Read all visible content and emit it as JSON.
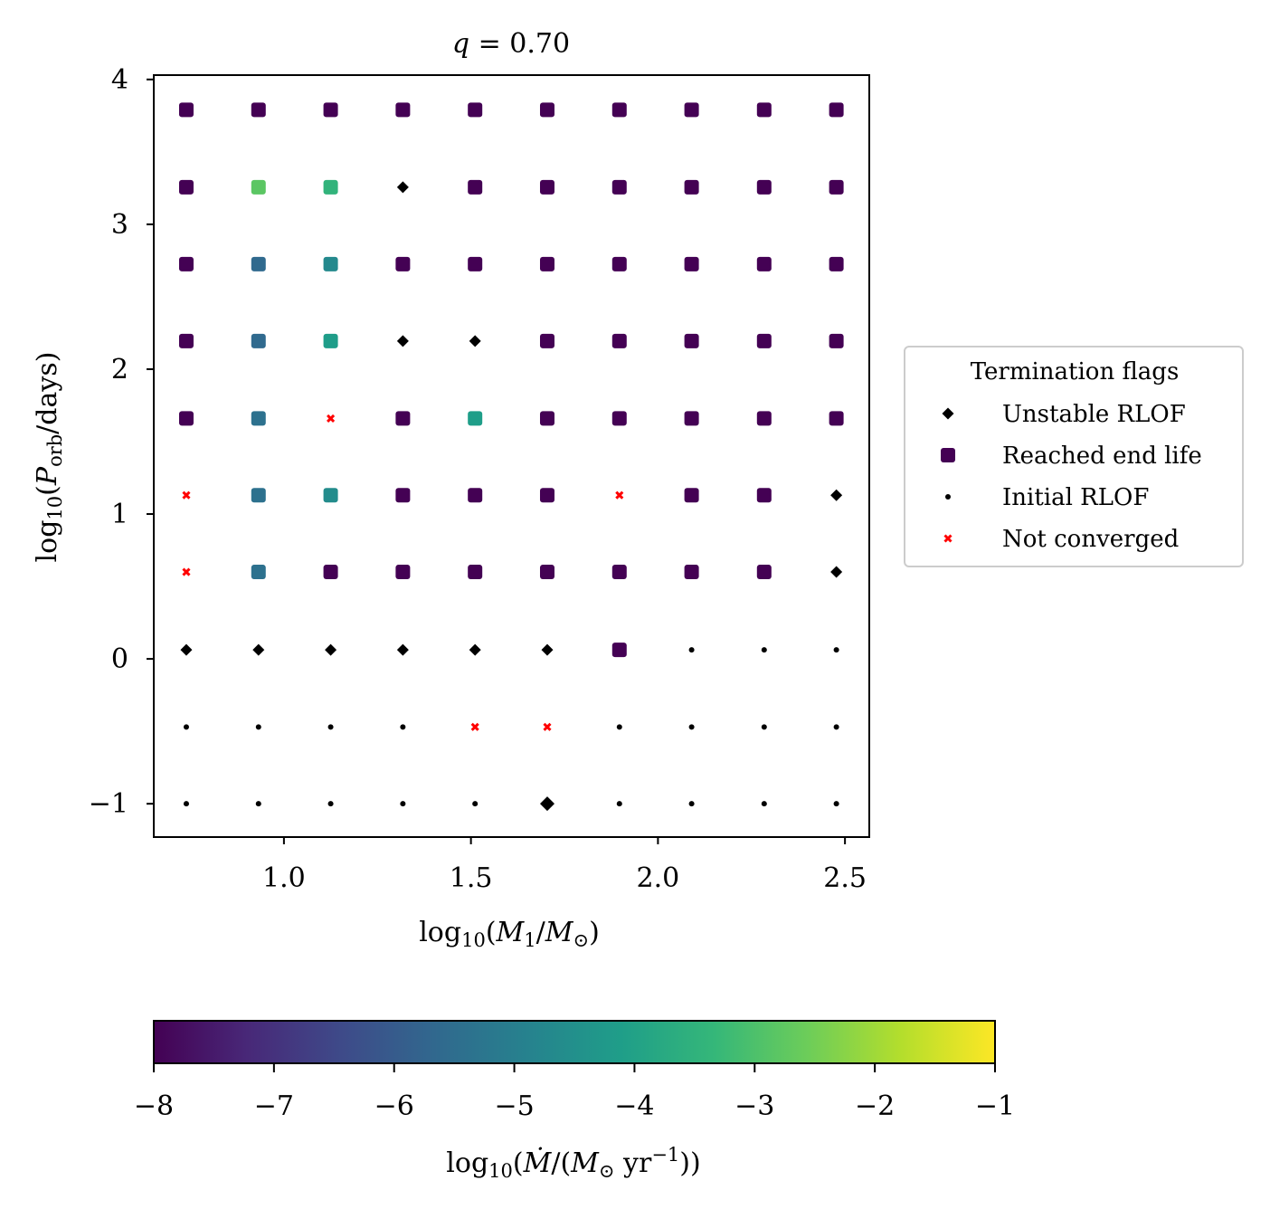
{
  "chart_data": {
    "type": "scatter",
    "title": [
      {
        "t": "q",
        "i": true
      },
      {
        "t": " = 0.70"
      }
    ],
    "xlabel": [
      {
        "t": "log"
      },
      {
        "t": "10",
        "sub": true
      },
      {
        "t": "("
      },
      {
        "t": "M",
        "i": true
      },
      {
        "t": "1",
        "sub": true
      },
      {
        "t": "/"
      },
      {
        "t": "M",
        "i": true
      },
      {
        "t": "⊙",
        "sub": true
      },
      {
        "t": ")"
      }
    ],
    "ylabel": [
      {
        "t": "log"
      },
      {
        "t": "10",
        "sub": true
      },
      {
        "t": "("
      },
      {
        "t": "P",
        "i": true
      },
      {
        "t": "orb",
        "sub": true
      },
      {
        "t": "/days)"
      }
    ],
    "xlim": [
      0.652,
      2.565
    ],
    "ylim": [
      -1.23,
      4.03
    ],
    "xticks": [
      1.0,
      1.5,
      2.0,
      2.5
    ],
    "xtick_labels": [
      "1.0",
      "1.5",
      "2.0",
      "2.5"
    ],
    "yticks": [
      -1,
      0,
      1,
      2,
      3,
      4
    ],
    "ytick_labels": [
      "−1",
      "0",
      "1",
      "2",
      "3",
      "4"
    ],
    "grid": false,
    "x": [
      0.739,
      0.932,
      1.125,
      1.318,
      1.511,
      1.704,
      1.897,
      2.09,
      2.284,
      2.477
    ],
    "y": [
      3.79,
      3.256,
      2.725,
      2.194,
      1.66,
      1.13,
      0.6,
      0.0625,
      -0.47,
      -1.0
    ],
    "flags": [
      [
        "E",
        "E",
        "E",
        "E",
        "E",
        "E",
        "E",
        "E",
        "E",
        "E"
      ],
      [
        "E",
        "E",
        "E",
        "U",
        "E",
        "E",
        "E",
        "E",
        "E",
        "E"
      ],
      [
        "E",
        "E",
        "E",
        "E",
        "E",
        "E",
        "E",
        "E",
        "E",
        "E"
      ],
      [
        "E",
        "E",
        "E",
        "U",
        "U",
        "E",
        "E",
        "E",
        "E",
        "E"
      ],
      [
        "E",
        "E",
        "N",
        "E",
        "E",
        "E",
        "E",
        "E",
        "E",
        "E"
      ],
      [
        "N",
        "E",
        "E",
        "E",
        "E",
        "E",
        "N",
        "E",
        "E",
        "U"
      ],
      [
        "N",
        "E",
        "E",
        "E",
        "E",
        "E",
        "E",
        "E",
        "E",
        "U"
      ],
      [
        "U",
        "U",
        "U",
        "U",
        "U",
        "U",
        "E",
        "I",
        "I",
        "I"
      ],
      [
        "I",
        "I",
        "I",
        "I",
        "N",
        "N",
        "I",
        "I",
        "I",
        "I"
      ],
      [
        "I",
        "I",
        "I",
        "I",
        "I",
        "U",
        "I",
        "I",
        "I",
        "I"
      ]
    ],
    "log_mdot": [
      [
        -8,
        -8,
        -8,
        -8,
        -8,
        -8,
        -8,
        -8,
        -8,
        -8
      ],
      [
        -8,
        -2.8,
        -3.45,
        null,
        -8,
        -8,
        -8,
        -8,
        -8,
        -8
      ],
      [
        -8,
        -5.6,
        -4.7,
        -8,
        -8,
        -8,
        -8,
        -8,
        -8,
        -8
      ],
      [
        -8,
        -5.6,
        -4.15,
        null,
        null,
        -8,
        -8,
        -8,
        -8,
        -8
      ],
      [
        -8,
        -5.4,
        null,
        -8,
        -4.1,
        -8,
        -8,
        -8,
        -8,
        -8
      ],
      [
        null,
        -5.4,
        -4.6,
        -8,
        -8,
        -8,
        null,
        -8,
        -8,
        null
      ],
      [
        null,
        -5.4,
        -8,
        -8,
        -8,
        -8,
        -8,
        -8,
        -8,
        null
      ],
      [
        null,
        null,
        null,
        null,
        null,
        null,
        -8,
        null,
        null,
        null
      ],
      [
        null,
        null,
        null,
        null,
        null,
        null,
        null,
        null,
        null,
        null
      ],
      [
        null,
        null,
        null,
        null,
        null,
        null,
        null,
        null,
        null,
        null
      ]
    ],
    "legend": {
      "title": "Termination flags",
      "placement": "right",
      "entries": [
        {
          "code": "U",
          "label": "Unstable RLOF",
          "marker": "diamond",
          "color": "#000000"
        },
        {
          "code": "E",
          "label": "Reached end life",
          "marker": "square",
          "color": "#440154"
        },
        {
          "code": "I",
          "label": "Initial RLOF",
          "marker": "dot",
          "color": "#000000"
        },
        {
          "code": "N",
          "label": "Not converged",
          "marker": "x",
          "color": "#ff0000"
        }
      ]
    },
    "colorbar": {
      "colormap": "viridis",
      "range": [
        -8,
        -1
      ],
      "ticks": [
        -8,
        -7,
        -6,
        -5,
        -4,
        -3,
        -2,
        -1
      ],
      "tick_labels": [
        "−8",
        "−7",
        "−6",
        "−5",
        "−4",
        "−3",
        "−2",
        "−1"
      ],
      "label": [
        {
          "t": "log"
        },
        {
          "t": "10",
          "sub": true
        },
        {
          "t": "("
        },
        {
          "t": "Ṁ",
          "i": true
        },
        {
          "t": "/("
        },
        {
          "t": "M",
          "i": true
        },
        {
          "t": "⊙",
          "sub": true
        },
        {
          "t": " yr"
        },
        {
          "t": "−1",
          "sup": true
        },
        {
          "t": "))"
        }
      ],
      "orientation": "horizontal"
    }
  }
}
